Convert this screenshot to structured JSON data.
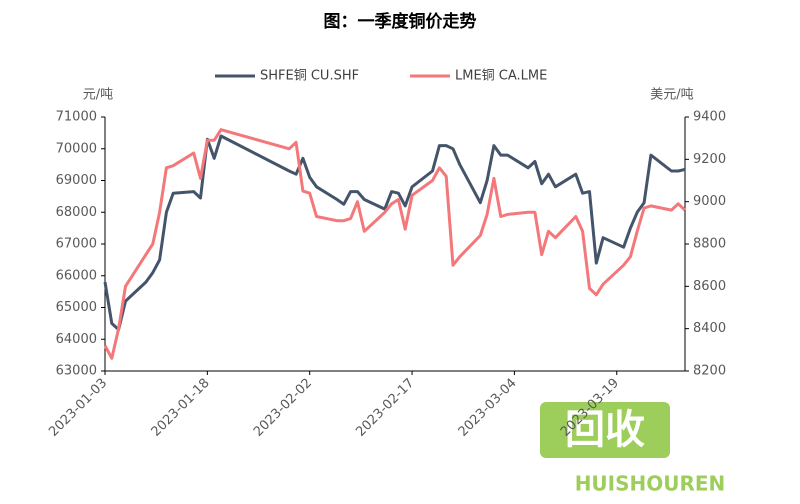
{
  "chart_data": {
    "type": "line",
    "title": "图：一季度铜价走势",
    "ylabel": "元/吨",
    "y2label": "美元/吨",
    "x": [
      "2023-01-03",
      "2023-01-04",
      "2023-01-05",
      "2023-01-06",
      "2023-01-09",
      "2023-01-10",
      "2023-01-11",
      "2023-01-12",
      "2023-01-13",
      "2023-01-16",
      "2023-01-17",
      "2023-01-18",
      "2023-01-19",
      "2023-01-20",
      "2023-01-30",
      "2023-01-31",
      "2023-02-01",
      "2023-02-02",
      "2023-02-03",
      "2023-02-06",
      "2023-02-07",
      "2023-02-08",
      "2023-02-09",
      "2023-02-10",
      "2023-02-13",
      "2023-02-14",
      "2023-02-15",
      "2023-02-16",
      "2023-02-17",
      "2023-02-20",
      "2023-02-21",
      "2023-02-22",
      "2023-02-23",
      "2023-02-24",
      "2023-02-27",
      "2023-02-28",
      "2023-03-01",
      "2023-03-02",
      "2023-03-03",
      "2023-03-06",
      "2023-03-07",
      "2023-03-08",
      "2023-03-09",
      "2023-03-10",
      "2023-03-13",
      "2023-03-14",
      "2023-03-15",
      "2023-03-16",
      "2023-03-17",
      "2023-03-20",
      "2023-03-21",
      "2023-03-22",
      "2023-03-23",
      "2023-03-24",
      "2023-03-27",
      "2023-03-28",
      "2023-03-29"
    ],
    "series": [
      {
        "name": "SHFE铜 CU.SHF",
        "color": "#44546a",
        "axis": "y",
        "values": [
          65800,
          64500,
          64300,
          65200,
          65800,
          66100,
          66500,
          68000,
          68600,
          68650,
          68450,
          70300,
          69700,
          70400,
          69300,
          69200,
          69700,
          69100,
          68800,
          68400,
          68250,
          68650,
          68650,
          68400,
          68100,
          68650,
          68600,
          68200,
          68800,
          69300,
          70100,
          70100,
          70000,
          69500,
          68300,
          69000,
          70100,
          69800,
          69800,
          69400,
          69600,
          68900,
          69200,
          68800,
          69200,
          68600,
          68650,
          66400,
          67200,
          66900,
          67500,
          68000,
          68300,
          69800,
          69300,
          69300,
          69350
        ]
      },
      {
        "name": "LME铜 CA.LME",
        "color": "#f4777a",
        "axis": "y2",
        "values": [
          8320,
          8260,
          8400,
          8600,
          8750,
          8800,
          8950,
          9160,
          9170,
          9230,
          9110,
          9290,
          9290,
          9340,
          9250,
          9280,
          9050,
          9040,
          8930,
          8910,
          8910,
          8920,
          9000,
          8860,
          8950,
          8990,
          9010,
          8870,
          9030,
          9100,
          9160,
          9120,
          8700,
          8740,
          8840,
          8940,
          9110,
          8930,
          8940,
          8950,
          8950,
          8750,
          8860,
          8830,
          8930,
          8860,
          8590,
          8560,
          8610,
          8700,
          8740,
          8860,
          8970,
          8980,
          8960,
          8990,
          8960
        ]
      }
    ],
    "xlim": [
      "2023-01-03",
      "2023-03-29"
    ],
    "xticks": [
      "2023-01-03",
      "2023-01-18",
      "2023-02-02",
      "2023-02-17",
      "2023-03-04",
      "2023-03-19"
    ],
    "ylim": [
      63000,
      71000
    ],
    "yticks": [
      63000,
      64000,
      65000,
      66000,
      67000,
      68000,
      69000,
      70000,
      71000
    ],
    "y2lim": [
      8200,
      9400
    ],
    "y2ticks": [
      8200,
      8400,
      8600,
      8800,
      9000,
      9200,
      9400
    ],
    "legend": "top",
    "watermark": {
      "logo": "回收",
      "text": "HUISHOUREN"
    }
  }
}
